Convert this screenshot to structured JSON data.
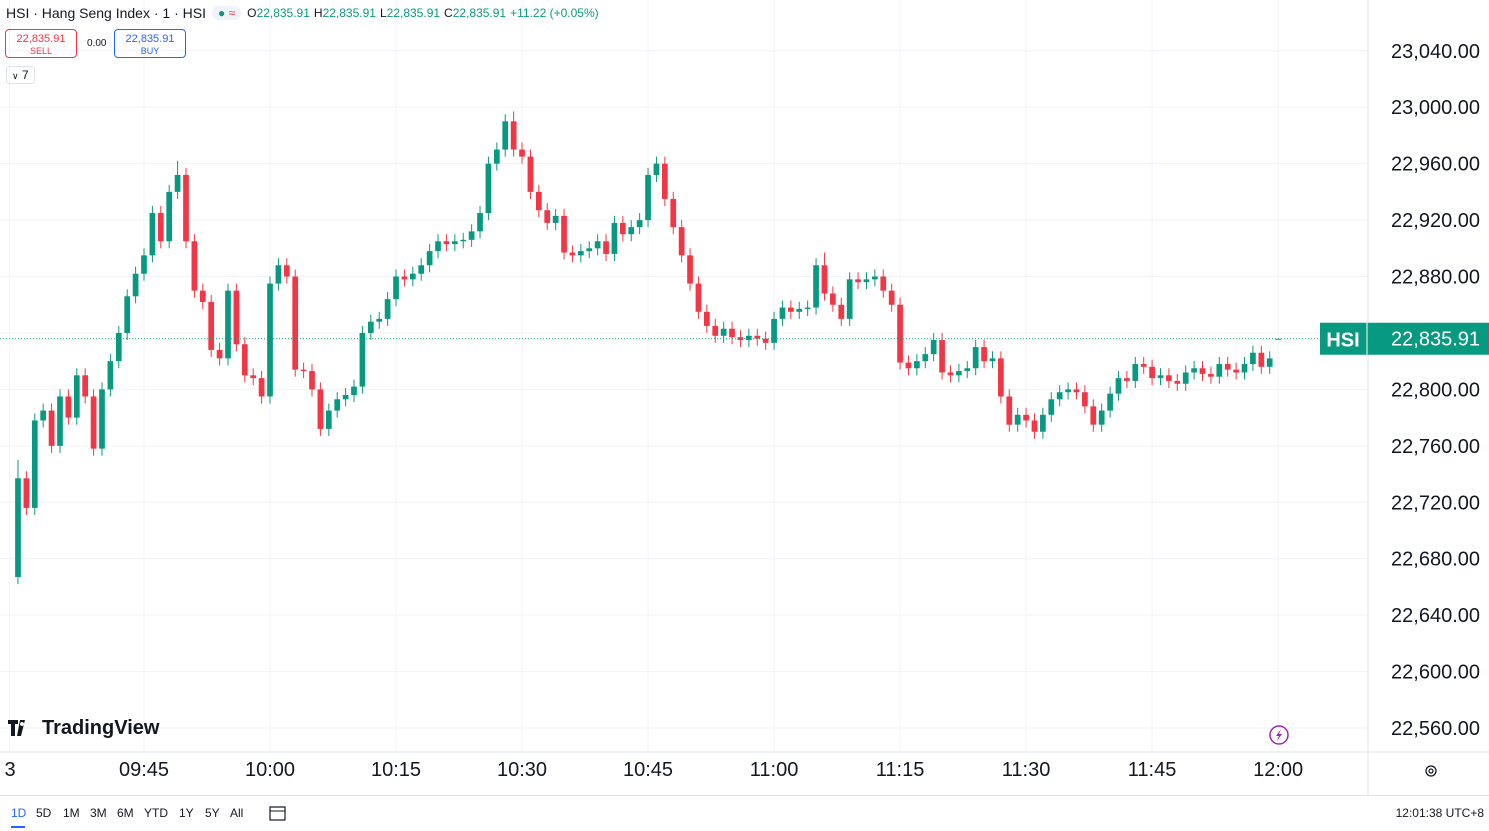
{
  "header": {
    "symbol_title": "HSI · Hang Seng Index · 1 · HSI",
    "ohlc": [
      {
        "label": "O",
        "value": "22,835.91"
      },
      {
        "label": "H",
        "value": "22,835.91"
      },
      {
        "label": "L",
        "value": "22,835.91"
      },
      {
        "label": "C",
        "value": "22,835.91"
      }
    ],
    "change": "+11.22 (+0.05%)"
  },
  "trade": {
    "sell_price": "22,835.91",
    "sell_label": "SELL",
    "spread": "0.00",
    "buy_price": "22,835.91",
    "buy_label": "BUY"
  },
  "indicators_count": 7,
  "logo": "TradingView",
  "toolbar": {
    "ranges": [
      "1D",
      "5D",
      "1M",
      "3M",
      "6M",
      "YTD",
      "1Y",
      "5Y",
      "All"
    ],
    "clock": "12:01:38 UTC+8"
  },
  "chart_data": {
    "type": "candlestick",
    "up_color": "#089981",
    "down_color": "#f23645",
    "grid": true,
    "open": [
      22667,
      22737,
      22716,
      22778,
      22785,
      22760,
      22795,
      22780,
      22810,
      22795,
      22758,
      22800,
      22820,
      22840,
      22866,
      22882,
      22895,
      22925,
      22905,
      22940,
      22952,
      22905,
      22870,
      22862,
      22828,
      22822,
      22870,
      22832,
      22810,
      22808,
      22795,
      22875,
      22888,
      22880,
      22814,
      22813,
      22800,
      22772,
      22785,
      22793,
      22796,
      22802,
      22840,
      22848,
      22850,
      22864,
      22880,
      22878,
      22882,
      22888,
      22898,
      22905,
      22903,
      22905,
      22906,
      22912,
      22925,
      22960,
      22970,
      22990,
      22970,
      22965,
      22940,
      22927,
      22918,
      22923,
      22897,
      22895,
      22898,
      22900,
      22905,
      22896,
      22918,
      22910,
      22915,
      22920,
      22952,
      22960,
      22935,
      22915,
      22895,
      22875,
      22855,
      22845,
      22838,
      22843,
      22837,
      22835,
      22838,
      22836,
      22833,
      22850,
      22858,
      22855,
      22857,
      22858,
      22888,
      22868,
      22860,
      22850,
      22878,
      22876,
      22878,
      22880,
      22870,
      22860,
      22819,
      22815,
      22820,
      22825,
      22835,
      22812,
      22810,
      22813,
      22815,
      22830,
      22820,
      22822,
      22795,
      22775,
      22782,
      22778,
      22770,
      22782,
      22793,
      22798,
      22800,
      22798,
      22788,
      22775,
      22785,
      22797,
      22808,
      22806,
      22818,
      22816,
      22808,
      22810,
      22806,
      22804,
      22812,
      22815,
      22811,
      22809,
      22818,
      22814,
      22812,
      22818,
      22826,
      22816,
      22835.91
    ],
    "high": [
      22750,
      22742,
      22783,
      22790,
      22790,
      22800,
      22800,
      22815,
      22815,
      22800,
      22805,
      22825,
      22845,
      22871,
      22887,
      22900,
      22930,
      22930,
      22945,
      22962,
      22957,
      22910,
      22875,
      22867,
      22833,
      22875,
      22875,
      22837,
      22815,
      22813,
      22880,
      22893,
      22893,
      22885,
      22819,
      22818,
      22805,
      22790,
      22798,
      22801,
      22807,
      22845,
      22853,
      22855,
      22869,
      22885,
      22885,
      22887,
      22893,
      22903,
      22910,
      22910,
      22910,
      22911,
      22917,
      22930,
      22965,
      22975,
      22995,
      22997,
      22975,
      22970,
      22945,
      22932,
      22928,
      22928,
      22902,
      22903,
      22905,
      22910,
      22910,
      22923,
      22923,
      22920,
      22925,
      22957,
      22965,
      22965,
      22940,
      22920,
      22900,
      22880,
      22860,
      22850,
      22848,
      22848,
      22842,
      22843,
      22843,
      22841,
      22855,
      22863,
      22863,
      22862,
      22863,
      22893,
      22897,
      22873,
      22865,
      22883,
      22883,
      22883,
      22885,
      22885,
      22875,
      22865,
      22824,
      22825,
      22830,
      22840,
      22840,
      22817,
      22818,
      22820,
      22835,
      22835,
      22827,
      22827,
      22800,
      22787,
      22787,
      22783,
      22787,
      22798,
      22803,
      22805,
      22805,
      22803,
      22793,
      22790,
      22802,
      22813,
      22813,
      22823,
      22823,
      22821,
      22815,
      22815,
      22811,
      22817,
      22820,
      22820,
      22816,
      22823,
      22823,
      22819,
      22823,
      22831,
      22831,
      22827,
      22835.91
    ],
    "low": [
      22662,
      22711,
      22711,
      22773,
      22755,
      22755,
      22775,
      22775,
      22790,
      22753,
      22753,
      22795,
      22815,
      22835,
      22861,
      22877,
      22890,
      22900,
      22900,
      22935,
      22900,
      22865,
      22857,
      22823,
      22817,
      22817,
      22827,
      22805,
      22803,
      22790,
      22790,
      22870,
      22875,
      22809,
      22808,
      22795,
      22767,
      22767,
      22780,
      22788,
      22791,
      22797,
      22835,
      22843,
      22845,
      22859,
      22873,
      22873,
      22877,
      22883,
      22893,
      22898,
      22898,
      22900,
      22901,
      22907,
      22920,
      22955,
      22965,
      22965,
      22960,
      22935,
      22922,
      22913,
      22913,
      22892,
      22890,
      22890,
      22893,
      22895,
      22891,
      22891,
      22905,
      22905,
      22910,
      22915,
      22947,
      22930,
      22910,
      22890,
      22870,
      22850,
      22840,
      22833,
      22833,
      22832,
      22830,
      22830,
      22831,
      22828,
      22828,
      22845,
      22850,
      22850,
      22852,
      22853,
      22863,
      22855,
      22845,
      22845,
      22871,
      22871,
      22873,
      22865,
      22855,
      22814,
      22810,
      22810,
      22815,
      22820,
      22807,
      22805,
      22805,
      22808,
      22810,
      22815,
      22815,
      22790,
      22770,
      22770,
      22773,
      22765,
      22765,
      22777,
      22788,
      22793,
      22793,
      22783,
      22770,
      22770,
      22780,
      22792,
      22801,
      22801,
      22811,
      22803,
      22803,
      22801,
      22799,
      22799,
      22807,
      22806,
      22804,
      22804,
      22809,
      22807,
      22807,
      22813,
      22811,
      22811,
      22835.91
    ],
    "close": [
      22737,
      22716,
      22778,
      22785,
      22760,
      22795,
      22780,
      22810,
      22795,
      22758,
      22800,
      22820,
      22840,
      22866,
      22882,
      22895,
      22925,
      22905,
      22940,
      22952,
      22905,
      22870,
      22862,
      22828,
      22822,
      22870,
      22832,
      22810,
      22808,
      22795,
      22875,
      22888,
      22880,
      22814,
      22813,
      22800,
      22772,
      22785,
      22793,
      22796,
      22802,
      22840,
      22848,
      22850,
      22864,
      22880,
      22878,
      22882,
      22888,
      22898,
      22905,
      22903,
      22905,
      22906,
      22912,
      22925,
      22960,
      22970,
      22990,
      22970,
      22965,
      22940,
      22927,
      22918,
      22923,
      22897,
      22895,
      22898,
      22900,
      22905,
      22896,
      22918,
      22910,
      22915,
      22920,
      22952,
      22960,
      22935,
      22915,
      22895,
      22875,
      22855,
      22845,
      22838,
      22843,
      22837,
      22835,
      22838,
      22836,
      22833,
      22850,
      22858,
      22855,
      22857,
      22858,
      22888,
      22868,
      22860,
      22850,
      22878,
      22876,
      22878,
      22880,
      22870,
      22860,
      22819,
      22815,
      22820,
      22825,
      22835,
      22812,
      22810,
      22813,
      22815,
      22830,
      22820,
      22822,
      22795,
      22775,
      22782,
      22778,
      22770,
      22782,
      22793,
      22798,
      22800,
      22798,
      22788,
      22775,
      22785,
      22797,
      22808,
      22806,
      22818,
      22816,
      22808,
      22810,
      22806,
      22804,
      22812,
      22815,
      22811,
      22809,
      22818,
      22814,
      22812,
      22818,
      22826,
      22816,
      22822,
      22835.91
    ],
    "ylim": [
      22543,
      23076
    ],
    "yticks": [
      {
        "value": 22560,
        "label": "22,560.00"
      },
      {
        "value": 22600,
        "label": "22,600.00"
      },
      {
        "value": 22640,
        "label": "22,640.00"
      },
      {
        "value": 22680,
        "label": "22,680.00"
      },
      {
        "value": 22720,
        "label": "22,720.00"
      },
      {
        "value": 22760,
        "label": "22,760.00"
      },
      {
        "value": 22800,
        "label": "22,800.00"
      },
      {
        "value": 22840,
        "label": "22,840.00"
      },
      {
        "value": 22880,
        "label": "22,880.00"
      },
      {
        "value": 22920,
        "label": "22,920.00"
      },
      {
        "value": 22960,
        "label": "22,960.00"
      },
      {
        "value": 23000,
        "label": "23,000.00"
      },
      {
        "value": 23040,
        "label": "23,040.00"
      }
    ],
    "xlim": [
      -2.14,
      160.7
    ],
    "xticks": [
      {
        "value": -1,
        "label": "3"
      },
      {
        "value": 15,
        "label": "09:45"
      },
      {
        "value": 30,
        "label": "10:00"
      },
      {
        "value": 45,
        "label": "10:15"
      },
      {
        "value": 60,
        "label": "10:30"
      },
      {
        "value": 75,
        "label": "10:45"
      },
      {
        "value": 90,
        "label": "11:00"
      },
      {
        "value": 105,
        "label": "11:15"
      },
      {
        "value": 120,
        "label": "11:30"
      },
      {
        "value": 135,
        "label": "11:45"
      },
      {
        "value": 150,
        "label": "12:00"
      }
    ],
    "last_price_symbol": "HSI",
    "last_price": {
      "value": 22835.91,
      "label": "22,835.91"
    }
  }
}
